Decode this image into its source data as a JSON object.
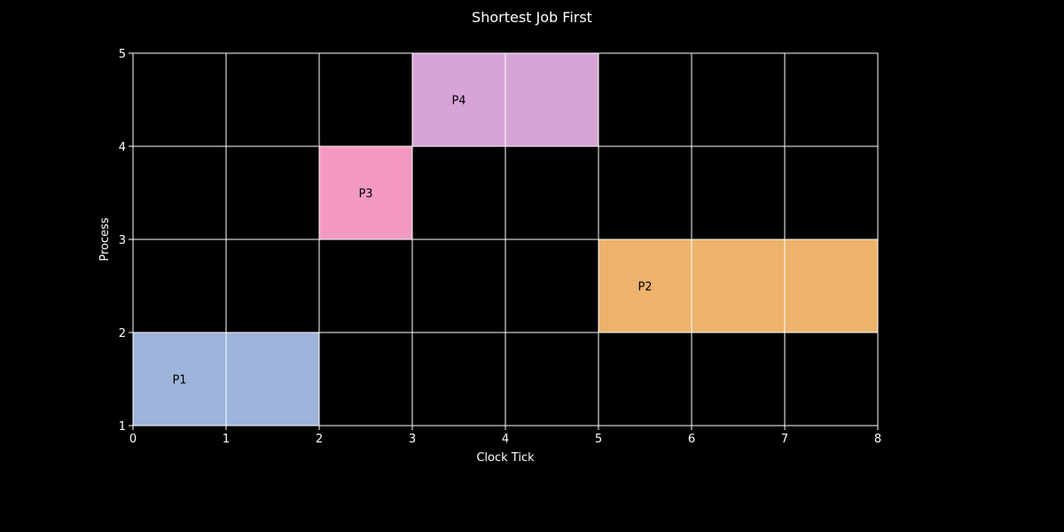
{
  "chart_data": {
    "type": "bar",
    "orientation": "horizontal-gantt",
    "title": "Shortest Job First",
    "xlabel": "Clock Tick",
    "ylabel": "Process",
    "xlim": [
      0,
      8
    ],
    "ylim": [
      1,
      5
    ],
    "xticks": [
      0,
      1,
      2,
      3,
      4,
      5,
      6,
      7,
      8
    ],
    "yticks": [
      1,
      2,
      3,
      4,
      5
    ],
    "grid": true,
    "legend": "none",
    "background": "#000000",
    "series": [
      {
        "name": "P1",
        "start": 0,
        "end": 2,
        "lane_bottom": 1,
        "lane_top": 2,
        "color": "#9db4db"
      },
      {
        "name": "P2",
        "start": 5,
        "end": 8,
        "lane_bottom": 2,
        "lane_top": 3,
        "color": "#edb36d"
      },
      {
        "name": "P3",
        "start": 2,
        "end": 3,
        "lane_bottom": 3,
        "lane_top": 4,
        "color": "#f49ac2"
      },
      {
        "name": "P4",
        "start": 3,
        "end": 5,
        "lane_bottom": 4,
        "lane_top": 5,
        "color": "#d8a4d8"
      }
    ]
  }
}
